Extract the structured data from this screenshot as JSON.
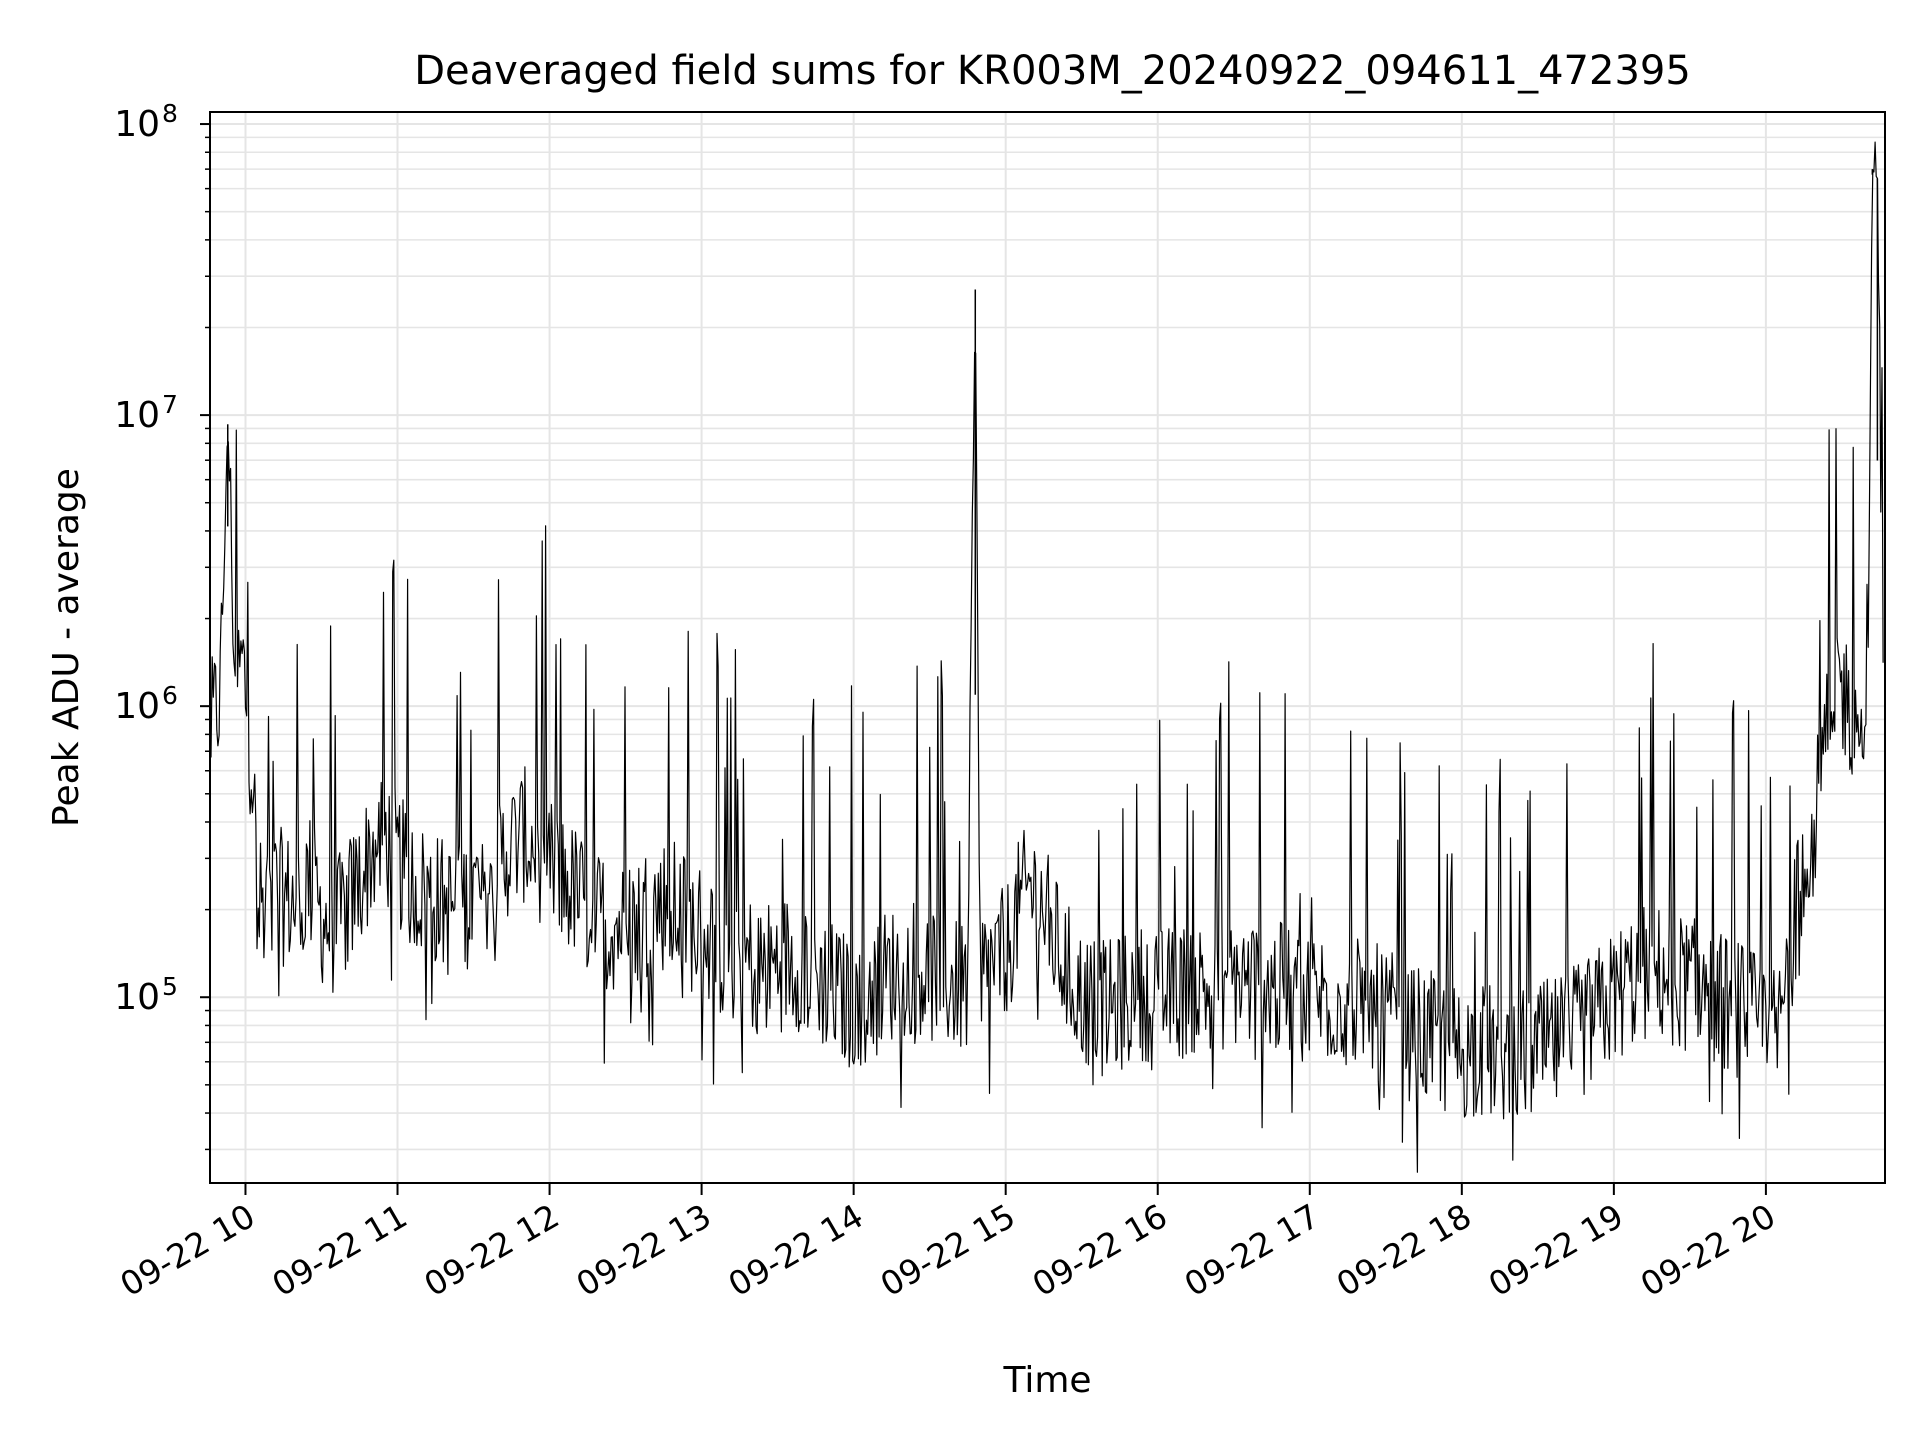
{
  "chart_data": {
    "type": "line",
    "title": "Deaveraged field sums for KR003M_20240922_094611_472395",
    "xlabel": "Time",
    "ylabel": "Peak ADU - average",
    "x_axis": {
      "scale": "time",
      "range": [
        "2024-09-22 09:46",
        "2024-09-22 20:47"
      ],
      "tick_values": [
        "2024-09-22 10:00",
        "2024-09-22 11:00",
        "2024-09-22 12:00",
        "2024-09-22 13:00",
        "2024-09-22 14:00",
        "2024-09-22 15:00",
        "2024-09-22 16:00",
        "2024-09-22 17:00",
        "2024-09-22 18:00",
        "2024-09-22 19:00",
        "2024-09-22 20:00"
      ],
      "tick_labels": [
        "09-22 10",
        "09-22 11",
        "09-22 12",
        "09-22 13",
        "09-22 14",
        "09-22 15",
        "09-22 16",
        "09-22 17",
        "09-22 18",
        "09-22 19",
        "09-22 20"
      ]
    },
    "y_axis": {
      "scale": "log",
      "range": [
        23000,
        110000000
      ],
      "major_ticks": [
        100000,
        1000000,
        10000000,
        100000000
      ],
      "tick_labels": [
        {
          "base": "10",
          "exp": "5"
        },
        {
          "base": "10",
          "exp": "6"
        },
        {
          "base": "10",
          "exp": "7"
        },
        {
          "base": "10",
          "exp": "8"
        }
      ]
    },
    "grid": true,
    "grid_minor": true,
    "line_color": "#000000",
    "grid_color": "#e5e5e5",
    "series": [
      {
        "points": [
          [
            "2024-09-22 09:46",
            800000
          ],
          [
            "2024-09-22 09:50",
            1100000
          ],
          [
            "2024-09-22 09:53",
            9300000
          ],
          [
            "2024-09-22 09:56",
            1200000
          ],
          [
            "2024-09-22 09:59",
            1400000
          ],
          [
            "2024-09-22 10:01",
            900000
          ],
          [
            "2024-09-22 10:03",
            550000
          ],
          [
            "2024-09-22 10:05",
            200000
          ],
          [
            "2024-09-22 10:10",
            230000
          ],
          [
            "2024-09-22 10:15",
            220000
          ],
          [
            "2024-09-22 10:20",
            210000
          ],
          [
            "2024-09-22 10:25",
            260000
          ],
          [
            "2024-09-22 10:30",
            190000
          ],
          [
            "2024-09-22 10:35",
            170000
          ],
          [
            "2024-09-22 10:40",
            200000
          ],
          [
            "2024-09-22 10:45",
            250000
          ],
          [
            "2024-09-22 10:50",
            320000
          ],
          [
            "2024-09-22 10:55",
            350000
          ],
          [
            "2024-09-22 11:00",
            300000
          ],
          [
            "2024-09-22 11:05",
            250000
          ],
          [
            "2024-09-22 11:10",
            230000
          ],
          [
            "2024-09-22 11:15",
            220000
          ],
          [
            "2024-09-22 11:20",
            200000
          ],
          [
            "2024-09-22 11:25",
            210000
          ],
          [
            "2024-09-22 11:30",
            220000
          ],
          [
            "2024-09-22 11:35",
            250000
          ],
          [
            "2024-09-22 11:40",
            300000
          ],
          [
            "2024-09-22 11:45",
            330000
          ],
          [
            "2024-09-22 11:50",
            360000
          ],
          [
            "2024-09-22 11:55",
            320000
          ],
          [
            "2024-09-22 12:00",
            280000
          ],
          [
            "2024-09-22 12:05",
            250000
          ],
          [
            "2024-09-22 12:10",
            230000
          ],
          [
            "2024-09-22 12:15",
            200000
          ],
          [
            "2024-09-22 12:20",
            190000
          ],
          [
            "2024-09-22 12:25",
            180000
          ],
          [
            "2024-09-22 12:30",
            175000
          ],
          [
            "2024-09-22 12:35",
            190000
          ],
          [
            "2024-09-22 12:40",
            200000
          ],
          [
            "2024-09-22 12:45",
            210000
          ],
          [
            "2024-09-22 12:50",
            200000
          ],
          [
            "2024-09-22 12:55",
            180000
          ],
          [
            "2024-09-22 13:00",
            170000
          ],
          [
            "2024-09-22 13:05",
            150000
          ],
          [
            "2024-09-22 13:10",
            140000
          ],
          [
            "2024-09-22 13:15",
            140000
          ],
          [
            "2024-09-22 13:20",
            130000
          ],
          [
            "2024-09-22 13:25",
            125000
          ],
          [
            "2024-09-22 13:30",
            130000
          ],
          [
            "2024-09-22 13:35",
            135000
          ],
          [
            "2024-09-22 13:40",
            130000
          ],
          [
            "2024-09-22 13:45",
            120000
          ],
          [
            "2024-09-22 13:50",
            110000
          ],
          [
            "2024-09-22 13:55",
            100000
          ],
          [
            "2024-09-22 14:00",
            95000
          ],
          [
            "2024-09-22 14:05",
            105000
          ],
          [
            "2024-09-22 14:10",
            115000
          ],
          [
            "2024-09-22 14:15",
            120000
          ],
          [
            "2024-09-22 14:20",
            125000
          ],
          [
            "2024-09-22 14:25",
            130000
          ],
          [
            "2024-09-22 14:30",
            120000
          ],
          [
            "2024-09-22 14:35",
            115000
          ],
          [
            "2024-09-22 14:40",
            110000
          ],
          [
            "2024-09-22 14:45",
            105000
          ],
          [
            "2024-09-22 14:48",
            27000000
          ],
          [
            "2024-09-22 14:50",
            120000
          ],
          [
            "2024-09-22 14:55",
            130000
          ],
          [
            "2024-09-22 15:00",
            140000
          ],
          [
            "2024-09-22 15:05",
            200000
          ],
          [
            "2024-09-22 15:10",
            240000
          ],
          [
            "2024-09-22 15:15",
            200000
          ],
          [
            "2024-09-22 15:20",
            150000
          ],
          [
            "2024-09-22 15:25",
            120000
          ],
          [
            "2024-09-22 15:30",
            100000
          ],
          [
            "2024-09-22 15:35",
            95000
          ],
          [
            "2024-09-22 15:40",
            90000
          ],
          [
            "2024-09-22 15:45",
            95000
          ],
          [
            "2024-09-22 15:50",
            100000
          ],
          [
            "2024-09-22 15:55",
            105000
          ],
          [
            "2024-09-22 16:00",
            100000
          ],
          [
            "2024-09-22 16:10",
            105000
          ],
          [
            "2024-09-22 16:20",
            110000
          ],
          [
            "2024-09-22 16:30",
            115000
          ],
          [
            "2024-09-22 16:40",
            110000
          ],
          [
            "2024-09-22 16:50",
            105000
          ],
          [
            "2024-09-22 17:00",
            100000
          ],
          [
            "2024-09-22 17:10",
            100000
          ],
          [
            "2024-09-22 17:20",
            95000
          ],
          [
            "2024-09-22 17:30",
            85000
          ],
          [
            "2024-09-22 17:40",
            75000
          ],
          [
            "2024-09-22 17:50",
            70000
          ],
          [
            "2024-09-22 18:00",
            65000
          ],
          [
            "2024-09-22 18:10",
            65000
          ],
          [
            "2024-09-22 18:20",
            62000
          ],
          [
            "2024-09-22 18:30",
            65000
          ],
          [
            "2024-09-22 18:40",
            70000
          ],
          [
            "2024-09-22 18:50",
            80000
          ],
          [
            "2024-09-22 19:00",
            100000
          ],
          [
            "2024-09-22 19:10",
            120000
          ],
          [
            "2024-09-22 19:20",
            120000
          ],
          [
            "2024-09-22 19:30",
            110000
          ],
          [
            "2024-09-22 19:40",
            100000
          ],
          [
            "2024-09-22 19:50",
            90000
          ],
          [
            "2024-09-22 20:00",
            80000
          ],
          [
            "2024-09-22 20:05",
            75000
          ],
          [
            "2024-09-22 20:10",
            150000
          ],
          [
            "2024-09-22 20:15",
            300000
          ],
          [
            "2024-09-22 20:20",
            450000
          ],
          [
            "2024-09-22 20:25",
            850000
          ],
          [
            "2024-09-22 20:28",
            1300000
          ],
          [
            "2024-09-22 20:31",
            1100000
          ],
          [
            "2024-09-22 20:34",
            950000
          ],
          [
            "2024-09-22 20:37",
            900000
          ],
          [
            "2024-09-22 20:40",
            800000
          ],
          [
            "2024-09-22 20:42",
            70000000
          ],
          [
            "2024-09-22 20:44",
            65000000
          ],
          [
            "2024-09-22 20:46",
            1500000
          ]
        ]
      }
    ]
  }
}
